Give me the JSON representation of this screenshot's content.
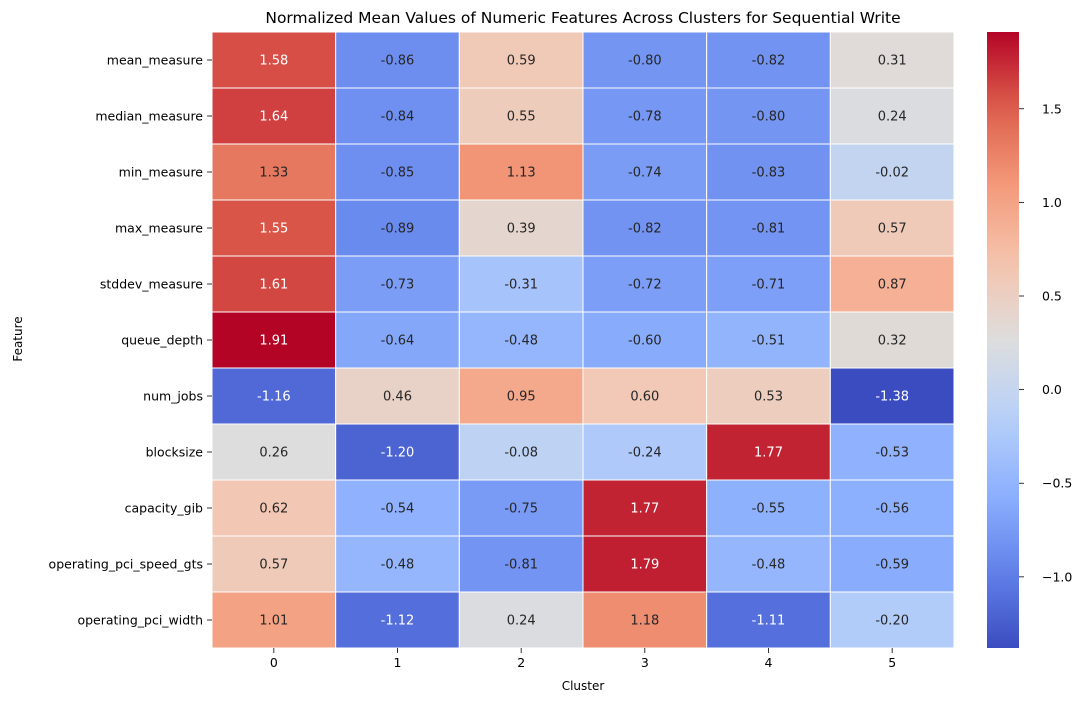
{
  "chart_data": {
    "type": "heatmap",
    "title": "Normalized Mean Values of Numeric Features Across Clusters for Sequential Write",
    "xlabel": "Cluster",
    "ylabel": "Feature",
    "x_categories": [
      "0",
      "1",
      "2",
      "3",
      "4",
      "5"
    ],
    "y_categories": [
      "mean_measure",
      "median_measure",
      "min_measure",
      "max_measure",
      "stddev_measure",
      "queue_depth",
      "num_jobs",
      "blocksize",
      "capacity_gib",
      "operating_pci_speed_gts",
      "operating_pci_width"
    ],
    "values": [
      [
        1.58,
        -0.86,
        0.59,
        -0.8,
        -0.82,
        0.31
      ],
      [
        1.64,
        -0.84,
        0.55,
        -0.78,
        -0.8,
        0.24
      ],
      [
        1.33,
        -0.85,
        1.13,
        -0.74,
        -0.83,
        -0.02
      ],
      [
        1.55,
        -0.89,
        0.39,
        -0.82,
        -0.81,
        0.57
      ],
      [
        1.61,
        -0.73,
        -0.31,
        -0.72,
        -0.71,
        0.87
      ],
      [
        1.91,
        -0.64,
        -0.48,
        -0.6,
        -0.51,
        0.32
      ],
      [
        -1.16,
        0.46,
        0.95,
        0.6,
        0.53,
        -1.38
      ],
      [
        0.26,
        -1.2,
        -0.08,
        -0.24,
        1.77,
        -0.53
      ],
      [
        0.62,
        -0.54,
        -0.75,
        1.77,
        -0.55,
        -0.56
      ],
      [
        0.57,
        -0.48,
        -0.81,
        1.79,
        -0.48,
        -0.59
      ],
      [
        1.01,
        -1.12,
        0.24,
        1.18,
        -1.11,
        -0.2
      ]
    ],
    "annotation_format": "2 decimals",
    "colormap": "coolwarm",
    "colorbar": {
      "range": [
        -1.38,
        1.91
      ],
      "ticks": [
        -1.0,
        -0.5,
        0.0,
        0.5,
        1.0,
        1.5
      ],
      "tick_labels": [
        "−1.0",
        "−0.5",
        "0.0",
        "0.5",
        "1.0",
        "1.5"
      ]
    },
    "cell_border_color": "#ffffff",
    "grid": false
  }
}
